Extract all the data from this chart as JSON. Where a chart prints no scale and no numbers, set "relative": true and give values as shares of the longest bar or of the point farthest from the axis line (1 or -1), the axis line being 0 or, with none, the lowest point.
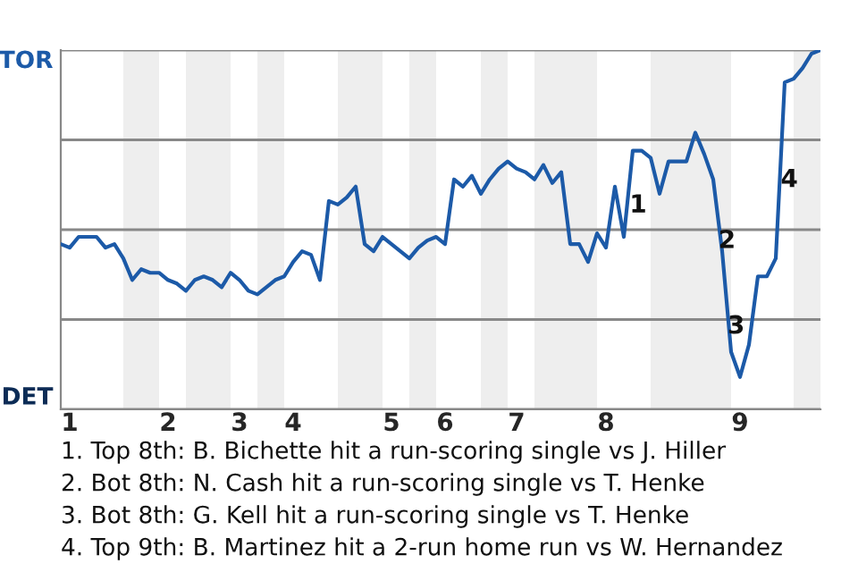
{
  "chart_data": {
    "type": "line",
    "relative": true,
    "categories": [
      null,
      "1",
      null,
      null,
      null,
      null,
      null,
      null,
      null,
      null,
      null,
      null,
      "2",
      null,
      null,
      null,
      null,
      null,
      null,
      null,
      "3",
      null,
      null,
      null,
      null,
      null,
      "4",
      null,
      null,
      null,
      null,
      null,
      null,
      null,
      null,
      null,
      null,
      "5",
      null,
      null,
      null,
      null,
      null,
      "6",
      null,
      null,
      null,
      null,
      null,
      null,
      null,
      "7",
      null,
      null,
      null,
      null,
      null,
      null,
      null,
      null,
      null,
      "8",
      null,
      null,
      null,
      null,
      null,
      null,
      null,
      null,
      null,
      null,
      null,
      null,
      null,
      null,
      "9",
      null,
      null,
      null,
      null,
      null,
      null,
      null,
      null,
      null
    ],
    "series": [
      {
        "color": "#1c5aa8",
        "values": [
          0.46,
          0.45,
          0.48,
          0.48,
          0.48,
          0.45,
          0.46,
          0.42,
          0.36,
          0.39,
          0.38,
          0.38,
          0.36,
          0.35,
          0.33,
          0.36,
          0.37,
          0.36,
          0.34,
          0.38,
          0.36,
          0.33,
          0.32,
          0.34,
          0.36,
          0.37,
          0.41,
          0.44,
          0.43,
          0.36,
          0.58,
          0.57,
          0.59,
          0.62,
          0.46,
          0.44,
          0.48,
          0.46,
          0.44,
          0.42,
          0.45,
          0.47,
          0.48,
          0.46,
          0.64,
          0.62,
          0.65,
          0.6,
          0.64,
          0.67,
          0.69,
          0.67,
          0.66,
          0.64,
          0.68,
          0.63,
          0.66,
          0.46,
          0.46,
          0.41,
          0.49,
          0.45,
          0.62,
          0.48,
          0.72,
          0.72,
          0.7,
          0.6,
          0.69,
          0.69,
          0.69,
          0.77,
          0.71,
          0.64,
          0.44,
          0.16,
          0.09,
          0.18,
          0.37,
          0.37,
          0.42,
          0.91,
          0.92,
          0.95,
          0.99,
          1
        ]
      }
    ],
    "grid": "y",
    "annotations": [
      "TOR",
      "DET",
      "1",
      "2",
      "3",
      "4",
      "1. Top 8th: B. Bichette hit a run-scoring single vs J. Hiller",
      "2. Bot 8th: N. Cash hit a run-scoring single vs T. Henke",
      "3. Bot 8th: G. Kell hit a run-scoring single vs T. Henke",
      "4. Top 9th: B. Martinez hit a 2-run home run vs W. Hernandez"
    ]
  }
}
